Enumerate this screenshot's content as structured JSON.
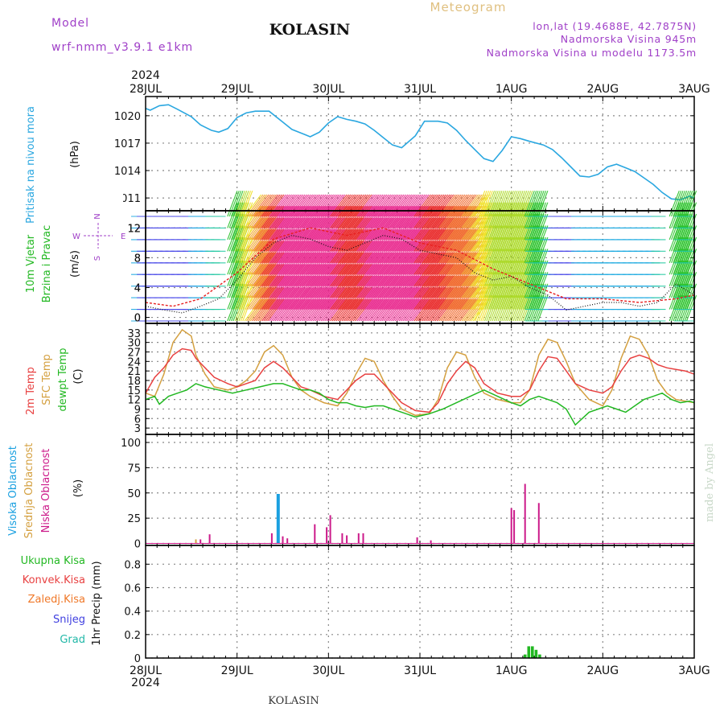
{
  "header": {
    "model_label": "Model",
    "model_name": "wrf-nmm_v3.9.1  e1km",
    "station": "KOLASIN",
    "product": "Meteogram",
    "coords": "lon,lat (19.4688E, 42.7875N)",
    "elevation": "Nadmorska Visina 945m",
    "model_elevation": "Nadmorska Visina u modelu 1173.5m"
  },
  "time_axis": {
    "year": "2024",
    "days": [
      "28JUL",
      "29JUL",
      "30JUL",
      "31JUL",
      "1AUG",
      "2AUG",
      "3AUG"
    ]
  },
  "footer": {
    "station": "KOLASIN",
    "credit": "made by Angel"
  },
  "colors": {
    "pressure": "#2aa7e0",
    "wind": "#22b822",
    "temp2m": "#e84040",
    "sfc": "#d4a040",
    "dew": "#22b822",
    "high_cloud": "#1aa0e0",
    "mid_cloud": "#d4a040",
    "low_cloud": "#cc1a8a",
    "total_precip": "#22b822",
    "conv_precip": "#e84040",
    "frz_precip": "#f07828",
    "snow": "#4040e0",
    "hail": "#22b8a8",
    "title_purple": "#a040c8",
    "meteogram_orange": "#e0c080"
  },
  "chart_data": [
    {
      "type": "line",
      "panel": "pressure",
      "ylabel_1": "Pritisak na nivou mora",
      "ylabel_2": "(hPa)",
      "yticks": [
        1011,
        1014,
        1017,
        1020
      ],
      "ylim": [
        1009.6,
        1022.1
      ],
      "x_unit": "days since 28JUL 00 UTC",
      "series": [
        {
          "x": [
            0,
            0.05,
            0.15,
            0.25,
            0.35,
            0.5,
            0.6,
            0.72,
            0.8,
            0.9,
            1.0,
            1.1,
            1.2,
            1.35,
            1.5,
            1.6,
            1.7,
            1.8,
            1.9,
            2.0,
            2.1,
            2.2,
            2.3,
            2.4,
            2.5,
            2.6,
            2.7,
            2.8,
            2.95,
            3.05,
            3.2,
            3.3,
            3.4,
            3.5,
            3.6,
            3.7,
            3.8,
            3.9,
            4.0,
            4.1,
            4.2,
            4.35,
            4.45,
            4.55,
            4.65,
            4.75,
            4.85,
            4.95,
            5.05,
            5.15,
            5.25,
            5.35,
            5.45,
            5.55,
            5.65,
            5.75,
            5.85,
            5.95,
            6.0
          ],
          "values": [
            1020.8,
            1020.6,
            1021.1,
            1021.2,
            1020.7,
            1019.9,
            1019.0,
            1018.4,
            1018.2,
            1018.6,
            1019.8,
            1020.3,
            1020.5,
            1020.5,
            1019.3,
            1018.5,
            1018.1,
            1017.7,
            1018.2,
            1019.2,
            1019.9,
            1019.6,
            1019.4,
            1019.1,
            1018.4,
            1017.6,
            1016.8,
            1016.5,
            1017.8,
            1019.4,
            1019.4,
            1019.2,
            1018.4,
            1017.3,
            1016.3,
            1015.3,
            1015.0,
            1016.2,
            1017.7,
            1017.5,
            1017.2,
            1016.8,
            1016.3,
            1015.4,
            1014.4,
            1013.4,
            1013.3,
            1013.6,
            1014.4,
            1014.7,
            1014.3,
            1013.9,
            1013.2,
            1012.5,
            1011.6,
            1010.9,
            1010.8,
            1011.2,
            1011.0
          ]
        }
      ]
    },
    {
      "type": "line",
      "panel": "wind",
      "ylabel_1": "10m Vjetar",
      "ylabel_2": "Brzina i Pravac",
      "ylabel_3": "(m/s)",
      "compass": {
        "n": "N",
        "w": "W",
        "e": "E",
        "s": "S"
      },
      "yticks": [
        0,
        4,
        8,
        12
      ],
      "ylim": [
        -0.8,
        14.3
      ],
      "series": [
        {
          "name": "speed",
          "x": [
            0,
            0.2,
            0.4,
            0.6,
            0.8,
            1.0,
            1.2,
            1.4,
            1.6,
            1.8,
            2.0,
            2.2,
            2.4,
            2.6,
            2.8,
            3.0,
            3.2,
            3.4,
            3.6,
            3.8,
            4.0,
            4.2,
            4.4,
            4.6,
            4.8,
            5.0,
            5.2,
            5.4,
            5.6,
            5.8,
            6.0
          ],
          "values": [
            1.5,
            1.0,
            0.6,
            1.5,
            2.5,
            5.0,
            8.0,
            10.0,
            11.0,
            10.5,
            9.5,
            9.0,
            10.0,
            11.0,
            10.5,
            9.0,
            8.5,
            8.0,
            6.0,
            5.0,
            5.5,
            4.0,
            3.0,
            1.0,
            1.5,
            2.0,
            2.0,
            1.5,
            2.0,
            4.5,
            3.0
          ]
        },
        {
          "name": "gust",
          "x": [
            0,
            0.3,
            0.6,
            1.0,
            1.4,
            1.8,
            2.2,
            2.6,
            3.0,
            3.4,
            3.8,
            4.2,
            4.6,
            5.0,
            5.4,
            5.8,
            6.0
          ],
          "values": [
            2.0,
            1.5,
            2.5,
            6.0,
            10.5,
            12.0,
            11.0,
            12.0,
            10.0,
            9.0,
            6.5,
            4.5,
            2.5,
            2.5,
            2.0,
            2.5,
            3.0
          ]
        }
      ]
    },
    {
      "type": "line",
      "panel": "temperature",
      "ylabel_1": "2m Temp",
      "ylabel_2": "SFC Temp",
      "ylabel_3": "dewpt Temp",
      "ylabel_4": "(C)",
      "yticks": [
        3,
        6,
        9,
        12,
        15,
        18,
        21,
        24,
        27,
        30,
        33
      ],
      "ylim": [
        1.0,
        36.0
      ],
      "series": [
        {
          "name": "2m Temp",
          "x": [
            0,
            0.1,
            0.2,
            0.3,
            0.4,
            0.5,
            0.55,
            0.65,
            0.75,
            0.9,
            1.0,
            1.1,
            1.2,
            1.3,
            1.4,
            1.5,
            1.6,
            1.7,
            1.8,
            1.95,
            2.1,
            2.2,
            2.3,
            2.4,
            2.5,
            2.6,
            2.7,
            2.8,
            2.95,
            3.1,
            3.2,
            3.3,
            3.4,
            3.5,
            3.6,
            3.7,
            3.85,
            4.0,
            4.1,
            4.2,
            4.3,
            4.4,
            4.5,
            4.6,
            4.7,
            4.85,
            5.0,
            5.1,
            5.2,
            5.3,
            5.4,
            5.5,
            5.6,
            5.7,
            5.8,
            5.9,
            6.0
          ],
          "values": [
            14,
            19,
            22,
            26,
            28,
            27.5,
            25,
            22,
            19,
            17,
            16,
            17,
            18,
            22,
            24,
            22,
            19,
            16,
            15,
            13,
            12,
            15,
            18,
            20,
            20,
            17,
            14,
            11,
            8.5,
            8,
            11,
            17,
            21,
            24,
            22,
            17,
            14,
            13,
            13,
            15,
            21,
            25.5,
            25,
            21,
            17,
            15,
            14,
            16,
            21,
            25,
            26,
            25,
            23,
            22,
            21.5,
            21,
            20
          ]
        },
        {
          "name": "SFC Temp",
          "x": [
            0,
            0.1,
            0.2,
            0.3,
            0.4,
            0.5,
            0.55,
            0.65,
            0.75,
            0.9,
            1.0,
            1.1,
            1.2,
            1.3,
            1.4,
            1.5,
            1.6,
            1.7,
            1.8,
            1.95,
            2.1,
            2.2,
            2.3,
            2.4,
            2.5,
            2.6,
            2.7,
            2.8,
            2.95,
            3.1,
            3.2,
            3.3,
            3.4,
            3.5,
            3.6,
            3.7,
            3.85,
            4.0,
            4.1,
            4.2,
            4.3,
            4.4,
            4.5,
            4.6,
            4.7,
            4.85,
            5.0,
            5.1,
            5.2,
            5.3,
            5.4,
            5.5,
            5.6,
            5.7,
            5.8,
            5.9,
            6.0
          ],
          "values": [
            14,
            13,
            20,
            30,
            34,
            32,
            26,
            20,
            16,
            15,
            16,
            18,
            21,
            27,
            29,
            26,
            19,
            15,
            13,
            11,
            10,
            14,
            20,
            25,
            24,
            18,
            13,
            9,
            7,
            7.5,
            12,
            22,
            27,
            26,
            19,
            14,
            12,
            11,
            11,
            15,
            26,
            31,
            30,
            24,
            17,
            12,
            10,
            15,
            25,
            32,
            31,
            26,
            18,
            14,
            12,
            11.5,
            11
          ]
        },
        {
          "name": "dewpt Temp",
          "x": [
            0,
            0.1,
            0.15,
            0.25,
            0.35,
            0.45,
            0.55,
            0.65,
            0.8,
            0.95,
            1.1,
            1.25,
            1.4,
            1.5,
            1.6,
            1.7,
            1.8,
            1.9,
            2.0,
            2.1,
            2.2,
            2.3,
            2.4,
            2.5,
            2.6,
            2.7,
            2.8,
            2.95,
            3.1,
            3.25,
            3.4,
            3.55,
            3.7,
            3.85,
            4.0,
            4.1,
            4.2,
            4.3,
            4.4,
            4.5,
            4.6,
            4.7,
            4.85,
            4.95,
            5.05,
            5.15,
            5.25,
            5.35,
            5.45,
            5.55,
            5.65,
            5.75,
            5.85,
            5.95,
            6.0
          ],
          "values": [
            12,
            13,
            10.5,
            13,
            14,
            15,
            17,
            16,
            15,
            14,
            15,
            16,
            17,
            17,
            16,
            15,
            15,
            14,
            12,
            11,
            11,
            10,
            9.5,
            10,
            10,
            9,
            8,
            6.5,
            7.5,
            9,
            11,
            13,
            15,
            13,
            11,
            10,
            12,
            13,
            12,
            11,
            9,
            4,
            8,
            9,
            10,
            9,
            8,
            10,
            12,
            13,
            14,
            12,
            11,
            11.5,
            11
          ]
        }
      ]
    },
    {
      "type": "bar",
      "panel": "cloud_cover",
      "ylabel_1": "Visoka Oblacnost",
      "ylabel_2": "Srednja Oblacnost",
      "ylabel_3": "Niska Oblacnost",
      "ylabel_4": "(%)",
      "yticks": [
        0,
        25,
        50,
        75,
        100
      ],
      "ylim": [
        -2,
        108
      ],
      "series": [
        {
          "name": "Visoka Oblacnost",
          "x": [
            1.45
          ],
          "values": [
            49
          ]
        },
        {
          "name": "Srednja Oblacnost",
          "x": [
            0.55
          ],
          "values": [
            4
          ]
        },
        {
          "name": "Niska Oblacnost",
          "x": [
            0.6,
            0.7,
            1.38,
            1.5,
            1.55,
            1.85,
            1.98,
            2.02,
            2.15,
            2.2,
            2.33,
            2.38,
            2.97,
            3.12,
            4.0,
            4.03,
            4.15,
            4.3
          ],
          "values": [
            4,
            9,
            10,
            7,
            5,
            19,
            16,
            28,
            10,
            8,
            10,
            10,
            6,
            3,
            35,
            33,
            59,
            40
          ]
        }
      ]
    },
    {
      "type": "bar",
      "panel": "precipitation",
      "ylabel_1": "1hr Precip (mm)",
      "legend_total": "Ukupna Kisa",
      "legend_conv": "Konvek.Kisa",
      "legend_frz": "Zaledj.Kisa",
      "legend_snow": "Snijeg",
      "legend_hail": "Grad",
      "yticks": [
        0,
        0.2,
        0.4,
        0.6,
        0.8
      ],
      "ylim": [
        0,
        0.96
      ],
      "series": [
        {
          "name": "Ukupna Kisa",
          "x": [
            4.15,
            4.19,
            4.23,
            4.27,
            4.31
          ],
          "values": [
            0.03,
            0.1,
            0.1,
            0.07,
            0.03
          ]
        }
      ]
    }
  ]
}
